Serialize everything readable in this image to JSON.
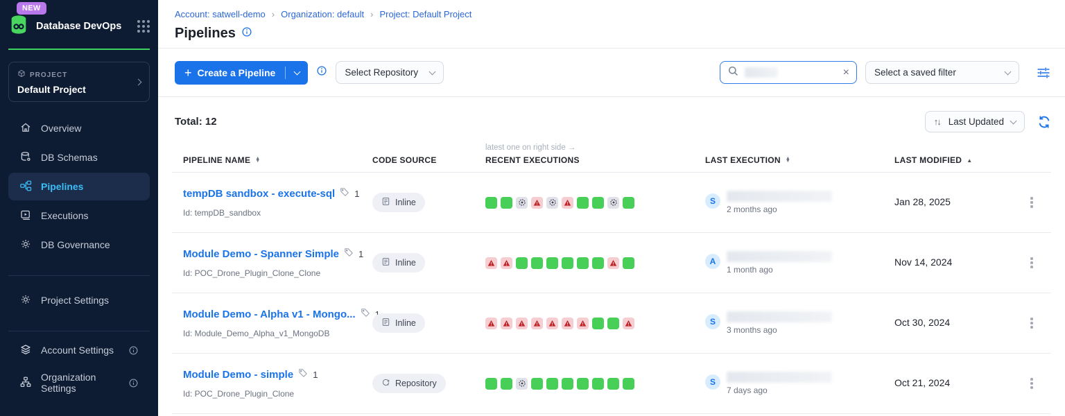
{
  "colors": {
    "sidebar_bg": "#0d1b33",
    "accent_blue": "#1a73e8",
    "active_nav": "#3cbdf5",
    "brand_green": "#3fd160",
    "new_badge": "#b877ea",
    "success_green": "#47cf57",
    "failed_bg": "#f6cdd0",
    "failed_icon": "#bf2629",
    "aborted_bg": "#e1e1ea"
  },
  "icons": {
    "plus": "+",
    "close": "×",
    "sort_updown": "↑↓"
  },
  "sidebar": {
    "new_badge": "NEW",
    "app_title": "Database DevOps",
    "project_label": "PROJECT",
    "project_name": "Default Project",
    "nav": [
      {
        "label": "Overview"
      },
      {
        "label": "DB Schemas"
      },
      {
        "label": "Pipelines"
      },
      {
        "label": "Executions"
      },
      {
        "label": "DB Governance"
      }
    ],
    "settings_nav": {
      "label": "Project Settings"
    },
    "bottom_nav": [
      {
        "label": "Account Settings"
      },
      {
        "label": "Organization Settings"
      }
    ]
  },
  "header": {
    "breadcrumb": [
      "Account: satwell-demo",
      "Organization: default",
      "Project: Default Project"
    ],
    "separator": "›",
    "title": "Pipelines"
  },
  "toolbar": {
    "create_button": "Create a Pipeline",
    "select_repository": "Select Repository",
    "saved_filter": "Select a saved filter"
  },
  "list": {
    "total_label": "Total: 12",
    "sort_label": "Last Updated",
    "executions_hint": "latest one on right side →",
    "columns": {
      "name": "PIPELINE NAME",
      "code_source": "CODE SOURCE",
      "recent_executions": "RECENT EXECUTIONS",
      "last_execution": "LAST EXECUTION",
      "last_modified": "LAST MODIFIED"
    },
    "rows": [
      {
        "name": "tempDB sandbox - execute-sql",
        "tag_count": "1",
        "id": "Id: tempDB_sandbox",
        "code_source": "Inline",
        "executions": [
          "success",
          "success",
          "aborted",
          "failed",
          "aborted",
          "failed",
          "success",
          "success",
          "aborted",
          "success"
        ],
        "avatar": "S",
        "last_execution_time": "2 months ago",
        "last_modified": "Jan 28, 2025"
      },
      {
        "name": "Module Demo - Spanner Simple",
        "tag_count": "1",
        "id": "Id: POC_Drone_Plugin_Clone_Clone",
        "code_source": "Inline",
        "executions": [
          "failed",
          "failed",
          "success",
          "success",
          "success",
          "success",
          "success",
          "success",
          "failed",
          "success"
        ],
        "avatar": "A",
        "last_execution_time": "1 month ago",
        "last_modified": "Nov 14, 2024"
      },
      {
        "name": "Module Demo - Alpha v1 - Mongo...",
        "tag_count": "1",
        "id": "Id: Module_Demo_Alpha_v1_MongoDB",
        "code_source": "Inline",
        "executions": [
          "failed",
          "failed",
          "failed",
          "failed",
          "failed",
          "failed",
          "failed",
          "success",
          "success",
          "failed"
        ],
        "avatar": "S",
        "last_execution_time": "3 months ago",
        "last_modified": "Oct 30, 2024"
      },
      {
        "name": "Module Demo - simple",
        "tag_count": "1",
        "id": "Id: POC_Drone_Plugin_Clone",
        "code_source": "Repository",
        "executions": [
          "success",
          "success",
          "aborted",
          "success",
          "success",
          "success",
          "success",
          "success",
          "success",
          "success"
        ],
        "avatar": "S",
        "last_execution_time": "7 days ago",
        "last_modified": "Oct 21, 2024"
      }
    ]
  }
}
